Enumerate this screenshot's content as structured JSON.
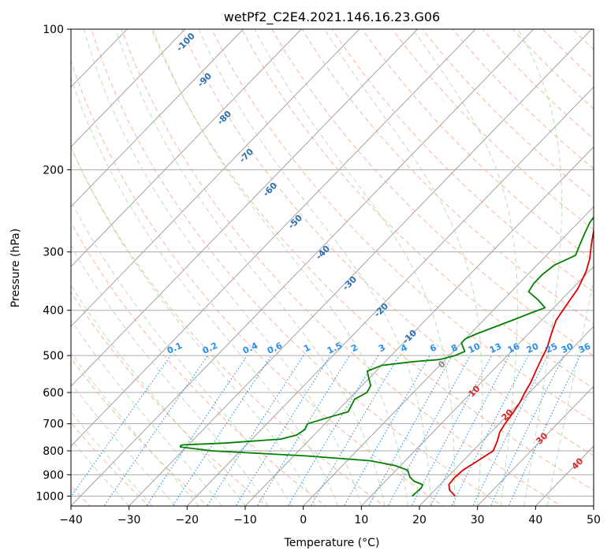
{
  "chart_data": {
    "type": "line",
    "title": "wetPf2_C2E4.2021.146.16.23.G06",
    "xlabel": "Temperature (°C)",
    "ylabel": "Pressure (hPa)",
    "xlim": [
      -40,
      50
    ],
    "ylim": [
      1050,
      100
    ],
    "x_ticks": [
      "−40",
      "−30",
      "−20",
      "−10",
      "0",
      "10",
      "20",
      "30",
      "40",
      "50"
    ],
    "x_tick_values": [
      -40,
      -30,
      -20,
      -10,
      0,
      10,
      20,
      30,
      40,
      50
    ],
    "y_ticks": [
      "100",
      "200",
      "300",
      "400",
      "500",
      "600",
      "700",
      "800",
      "900",
      "1000"
    ],
    "y_tick_values": [
      100,
      200,
      300,
      400,
      500,
      600,
      700,
      800,
      900,
      1000
    ],
    "series": [
      {
        "name": "temperature",
        "color": "#e00000",
        "points": [
          [
            24.5,
            1000
          ],
          [
            22.5,
            970
          ],
          [
            21.5,
            945
          ],
          [
            21.3,
            915
          ],
          [
            21.5,
            880
          ],
          [
            22.5,
            840
          ],
          [
            23.5,
            800
          ],
          [
            22.5,
            760
          ],
          [
            21.5,
            730
          ],
          [
            21,
            700
          ],
          [
            20.5,
            660
          ],
          [
            20,
            630
          ],
          [
            19.2,
            600
          ],
          [
            18.5,
            570
          ],
          [
            17.5,
            540
          ],
          [
            16.5,
            510
          ],
          [
            15.5,
            480
          ],
          [
            14.5,
            460
          ],
          [
            13.5,
            440
          ],
          [
            12.5,
            420
          ],
          [
            12,
            400
          ],
          [
            11.5,
            380
          ],
          [
            11,
            360
          ],
          [
            9.5,
            330
          ],
          [
            8,
            310
          ],
          [
            6,
            290
          ],
          [
            4,
            270
          ],
          [
            2.5,
            245
          ],
          [
            1.5,
            225
          ],
          [
            0,
            210
          ],
          [
            0.5,
            200
          ],
          [
            2.5,
            185
          ],
          [
            3.8,
            175
          ],
          [
            5,
            160
          ],
          [
            6.3,
            145
          ],
          [
            8,
            130
          ],
          [
            10.5,
            118
          ],
          [
            11.8,
            110
          ],
          [
            12,
            105
          ],
          [
            11.8,
            100
          ]
        ]
      },
      {
        "name": "dewpoint",
        "color": "#008000",
        "points": [
          [
            17.1,
            1000
          ],
          [
            17.2,
            980
          ],
          [
            17.3,
            960
          ],
          [
            17,
            945
          ],
          [
            15,
            930
          ],
          [
            13.5,
            910
          ],
          [
            12,
            880
          ],
          [
            9,
            860
          ],
          [
            4,
            840
          ],
          [
            -8,
            820
          ],
          [
            -25,
            800
          ],
          [
            -31,
            785
          ],
          [
            -31.2,
            780
          ],
          [
            -31,
            777
          ],
          [
            -24,
            770
          ],
          [
            -15,
            755
          ],
          [
            -13,
            740
          ],
          [
            -12.5,
            720
          ],
          [
            -13,
            700
          ],
          [
            -10,
            675
          ],
          [
            -8,
            660
          ],
          [
            -8.5,
            640
          ],
          [
            -9,
            620
          ],
          [
            -8,
            600
          ],
          [
            -8.5,
            580
          ],
          [
            -10,
            560
          ],
          [
            -11.5,
            540
          ],
          [
            -10,
            525
          ],
          [
            -5,
            515
          ],
          [
            -1,
            510
          ],
          [
            1,
            500
          ],
          [
            2,
            490
          ],
          [
            1,
            480
          ],
          [
            0,
            470
          ],
          [
            0,
            460
          ],
          [
            1,
            450
          ],
          [
            5,
            420
          ],
          [
            7,
            405
          ],
          [
            8.5,
            395
          ],
          [
            6,
            380
          ],
          [
            3,
            365
          ],
          [
            2.5,
            350
          ],
          [
            2.5,
            335
          ],
          [
            3,
            320
          ],
          [
            5,
            305
          ],
          [
            4,
            290
          ],
          [
            3,
            275
          ],
          [
            2,
            260
          ],
          [
            1.5,
            245
          ],
          [
            0.5,
            225
          ],
          [
            -1.5,
            210
          ],
          [
            -3,
            200
          ],
          [
            -5,
            190
          ],
          [
            -7,
            185
          ],
          [
            -9,
            180
          ],
          [
            -12,
            165
          ],
          [
            -14,
            155
          ],
          [
            -13,
            150
          ],
          [
            -12.5,
            145
          ],
          [
            -10,
            140
          ],
          [
            -8,
            135
          ],
          [
            -7,
            130
          ],
          [
            -7,
            125
          ],
          [
            -7.5,
            120
          ],
          [
            -8,
            115
          ],
          [
            -7.5,
            110
          ],
          [
            -6,
            107
          ],
          [
            -3,
            103
          ],
          [
            -1,
            100
          ]
        ]
      }
    ],
    "dry_adiabat_labels": [
      "-100",
      "-90",
      "-80",
      "-70",
      "-60",
      "-50",
      "-40",
      "-30",
      "-20",
      "-10",
      "0"
    ],
    "dry_adiabat_values": [
      -100,
      -90,
      -80,
      -70,
      -60,
      -50,
      -40,
      -30,
      -20,
      -10,
      0
    ],
    "moist_adiabat_labels": [
      "10",
      "20",
      "30",
      "40"
    ],
    "moist_adiabat_values": [
      10,
      20,
      30,
      40
    ],
    "mixing_ratio_labels": [
      "0.1",
      "0.2",
      "0.4",
      "0.6",
      "1",
      "1.5",
      "2",
      "3",
      "4",
      "6",
      "8",
      "10",
      "13",
      "16",
      "20",
      "25",
      "30",
      "36"
    ],
    "mixing_ratio_values": [
      0.1,
      0.2,
      0.4,
      0.6,
      1,
      1.5,
      2,
      3,
      4,
      6,
      8,
      10,
      13,
      16,
      20,
      25,
      30,
      36
    ],
    "colors": {
      "isotherm": "#999999",
      "isobar": "#aaaaaa",
      "dry_adiabat": "#f4a582",
      "moist_adiabat": "#a6d8a6",
      "mixing_ratio": "#2a8ee8",
      "label_dry": "#2a6fb0",
      "label_moist": "#d62728"
    }
  }
}
